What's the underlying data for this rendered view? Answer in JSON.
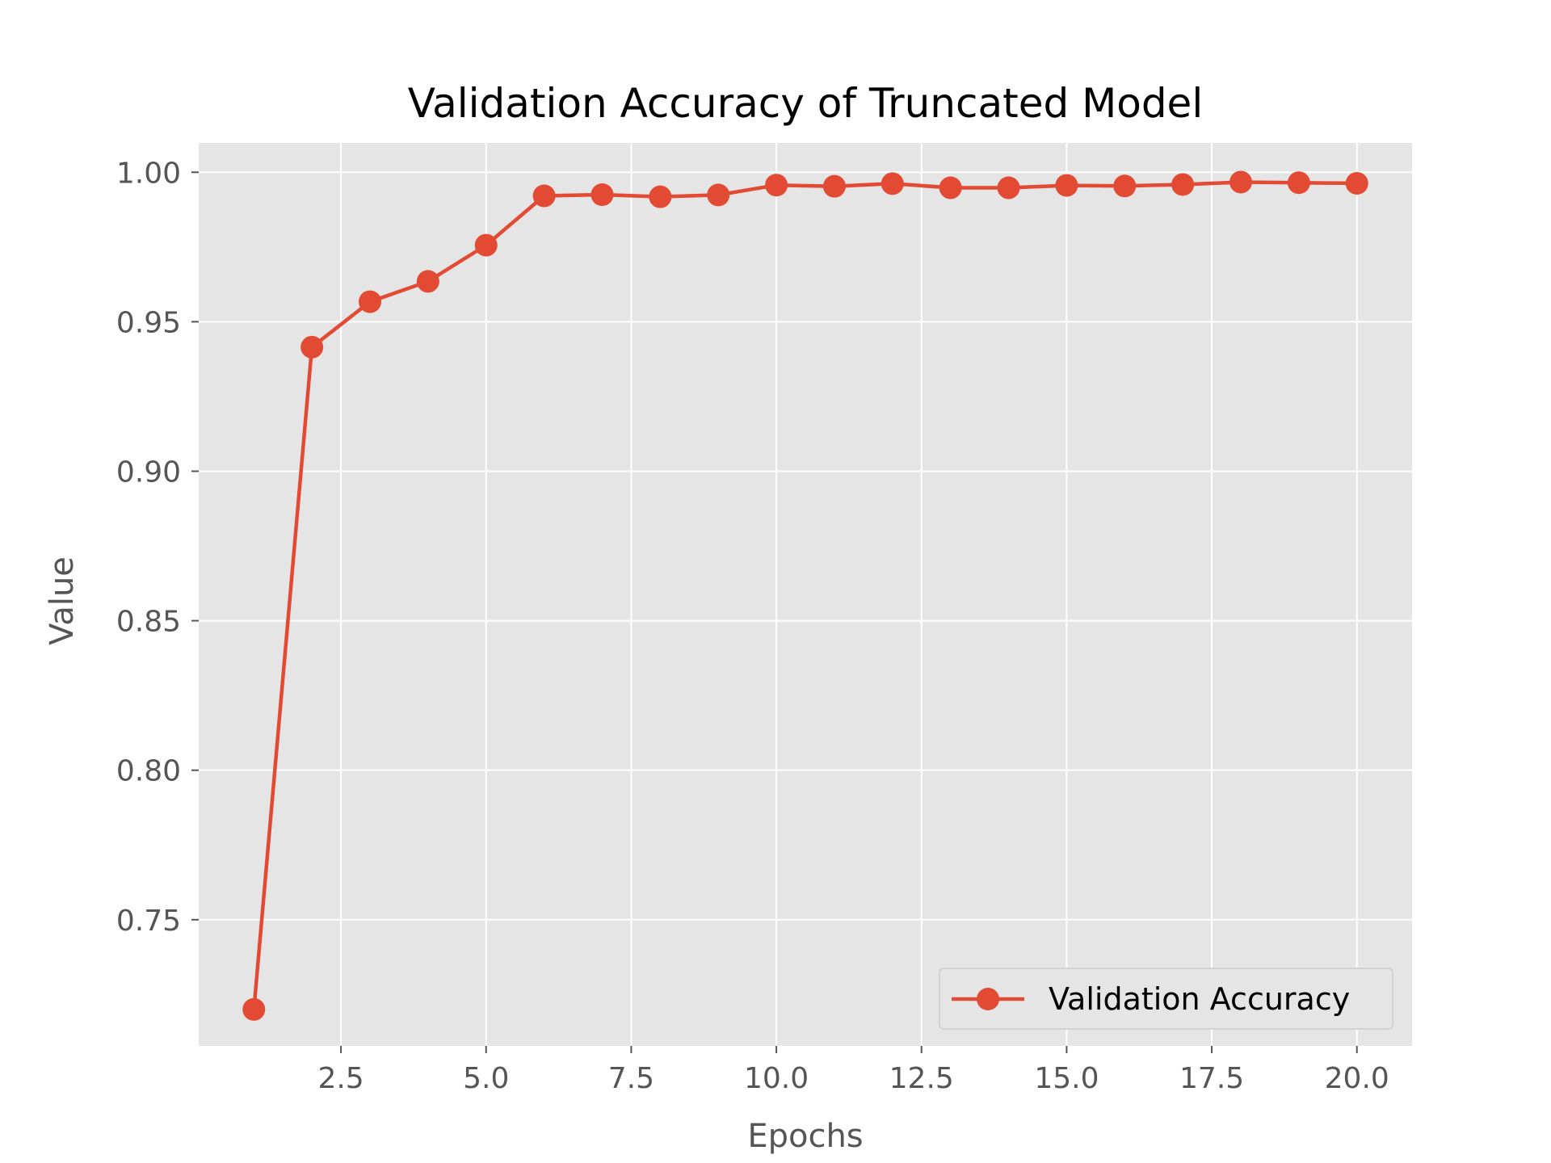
{
  "chart_data": {
    "type": "line",
    "title": "Validation Accuracy of Truncated Model",
    "xlabel": "Epochs",
    "ylabel": "Value",
    "xlim": [
      0.05,
      20.95
    ],
    "ylim": [
      0.7078,
      1.0098
    ],
    "x_ticks": [
      2.5,
      5.0,
      7.5,
      10.0,
      12.5,
      15.0,
      17.5,
      20.0
    ],
    "x_tick_labels": [
      "2.5",
      "5.0",
      "7.5",
      "10.0",
      "12.5",
      "15.0",
      "17.5",
      "20.0"
    ],
    "y_ticks": [
      0.75,
      0.8,
      0.85,
      0.9,
      0.95,
      1.0
    ],
    "y_tick_labels": [
      "0.75",
      "0.80",
      "0.85",
      "0.90",
      "0.95",
      "1.00"
    ],
    "grid": true,
    "legend_position": "lower right",
    "series": [
      {
        "name": "Validation Accuracy",
        "color": "#e24a33",
        "marker": "circle",
        "x": [
          1,
          2,
          3,
          4,
          5,
          6,
          7,
          8,
          9,
          10,
          11,
          12,
          13,
          14,
          15,
          16,
          17,
          18,
          19,
          20
        ],
        "values": [
          0.72,
          0.9415,
          0.9567,
          0.9635,
          0.9756,
          0.9921,
          0.9925,
          0.9918,
          0.9924,
          0.9957,
          0.9953,
          0.9962,
          0.9948,
          0.9948,
          0.9956,
          0.9954,
          0.9959,
          0.9967,
          0.9965,
          0.9963
        ]
      }
    ]
  }
}
